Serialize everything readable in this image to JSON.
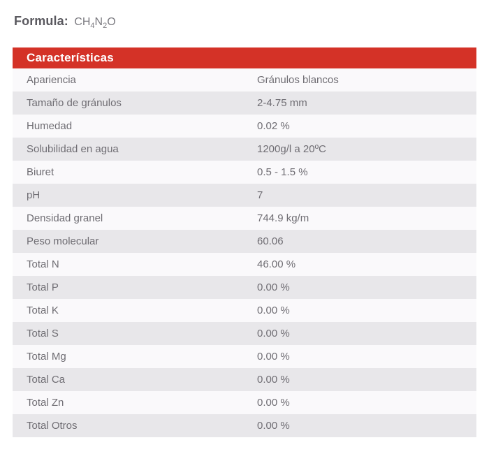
{
  "colors": {
    "header_red": "#d43227",
    "row_light": "#faf9fb",
    "row_gray": "#e8e7ea",
    "text_gray": "#6f6d73",
    "formula_label_gray": "#5a595f",
    "page_background": "#ffffff"
  },
  "formula": {
    "label": "Formula:",
    "p1": "CH",
    "s1": "4",
    "p2": "N",
    "s2": "2",
    "p3": "O"
  },
  "table": {
    "title": "Características",
    "rows": [
      {
        "label": "Apariencia",
        "value": "Gránulos blancos"
      },
      {
        "label": "Tamaño de gránulos",
        "value": "2-4.75 mm"
      },
      {
        "label": "Humedad",
        "value": "0.02 %"
      },
      {
        "label": "Solubilidad en agua",
        "value": "1200g/l a 20ºC"
      },
      {
        "label": "Biuret",
        "value": "0.5 - 1.5 %"
      },
      {
        "label": "pH",
        "value": "7"
      },
      {
        "label": "Densidad granel",
        "value": "744.9 kg/m"
      },
      {
        "label": "Peso molecular",
        "value": "60.06"
      },
      {
        "label": "Total N",
        "value": "46.00 %"
      },
      {
        "label": "Total P",
        "value": "0.00 %"
      },
      {
        "label": "Total K",
        "value": "0.00 %"
      },
      {
        "label": "Total S",
        "value": "0.00 %"
      },
      {
        "label": "Total Mg",
        "value": "0.00 %"
      },
      {
        "label": "Total Ca",
        "value": "0.00 %"
      },
      {
        "label": "Total Zn",
        "value": "0.00 %"
      },
      {
        "label": "Total Otros",
        "value": "0.00 %"
      }
    ]
  }
}
